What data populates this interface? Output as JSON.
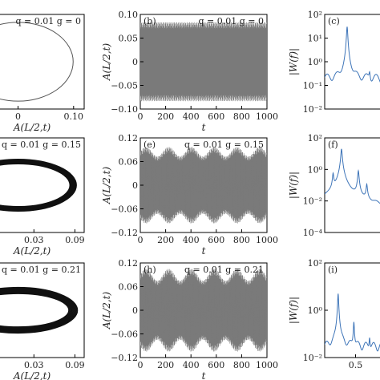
{
  "chart_data": [
    {
      "type": "line",
      "panel": "a",
      "label": "",
      "annotation": "q = 0.01  g = 0",
      "xlabel": "A(L/2,t)",
      "ylabel": "",
      "xlim": [
        -0.12,
        0.12
      ],
      "ylim": [
        -0.12,
        0.12
      ],
      "xticks": [
        "0",
        "0.10"
      ],
      "yticks": [],
      "series": [
        {
          "kind": "ellipse",
          "cx": 0.0,
          "cy": 0.0,
          "rx": 0.1,
          "ry": 0.1,
          "band": 0.0
        }
      ]
    },
    {
      "type": "line",
      "panel": "b",
      "label": "(b)",
      "annotation": "q = 0.01  g = 0",
      "xlabel": "t",
      "ylabel": "A(L/2,t)",
      "xlim": [
        0,
        1000
      ],
      "ylim": [
        -0.12,
        0.12
      ],
      "xticks": [
        "0",
        "200",
        "400",
        "600",
        "800",
        "1000"
      ],
      "yticks": [
        "0.10",
        "0.05",
        "0",
        "−0.05",
        "−0.10"
      ],
      "series": [
        {
          "kind": "oscillation",
          "amp": 0.1,
          "mod": 0.0
        }
      ]
    },
    {
      "type": "line",
      "panel": "c",
      "label": "(c)",
      "xlabel": "",
      "ylabel": "|W(f)|",
      "yscale": "log",
      "ylim": [
        0.01,
        100
      ],
      "xlim": [
        0,
        0.4
      ],
      "xticks": [],
      "yticks": [
        "10²",
        "10¹",
        "10⁰",
        "10⁻¹",
        "10⁻²"
      ],
      "series": [
        {
          "kind": "spectrum",
          "peaks": [
            [
              0.16,
              30
            ],
            [
              0.32,
              0.2
            ]
          ],
          "base": 0.2
        }
      ]
    },
    {
      "type": "line",
      "panel": "d",
      "label": "",
      "annotation": "q = 0.01  g = 0.15",
      "xlabel": "A(L/2,t)",
      "ylabel": "",
      "xlim": [
        -0.12,
        0.12
      ],
      "ylim": [
        -0.12,
        0.12
      ],
      "xticks": [
        "0.03",
        "0.09"
      ],
      "yticks": [],
      "series": [
        {
          "kind": "ellipse",
          "cx": 0.0,
          "cy": 0.0,
          "rx": 0.1,
          "ry": 0.06,
          "band": 0.012
        }
      ]
    },
    {
      "type": "line",
      "panel": "e",
      "label": "(e)",
      "annotation": "q = 0.01  g = 0.15",
      "xlabel": "t",
      "ylabel": "A(L/2,t)",
      "xlim": [
        0,
        1000
      ],
      "ylim": [
        -0.12,
        0.12
      ],
      "xticks": [
        "0",
        "200",
        "400",
        "600",
        "800",
        "1000"
      ],
      "yticks": [
        "0.12",
        "0.06",
        "0",
        "−0.06",
        "−0.12"
      ],
      "series": [
        {
          "kind": "oscillation",
          "amp": 0.085,
          "mod": 0.012
        }
      ]
    },
    {
      "type": "line",
      "panel": "f",
      "label": "(f)",
      "xlabel": "",
      "ylabel": "|W(f)|",
      "yscale": "log",
      "ylim": [
        0.0001,
        100
      ],
      "xlim": [
        0,
        0.4
      ],
      "xticks": [],
      "yticks": [
        "10²",
        "10⁰",
        "10⁻²",
        "10⁻⁴"
      ],
      "series": [
        {
          "kind": "spectrum",
          "peaks": [
            [
              0.06,
              0.5
            ],
            [
              0.12,
              20
            ],
            [
              0.24,
              0.8
            ],
            [
              0.3,
              0.1
            ]
          ],
          "base": 0.003
        }
      ]
    },
    {
      "type": "line",
      "panel": "g",
      "label": "",
      "annotation": "q = 0.01  g = 0.21",
      "xlabel": "A(L/2,t)",
      "ylabel": "",
      "xlim": [
        -0.12,
        0.12
      ],
      "ylim": [
        -0.12,
        0.12
      ],
      "xticks": [
        "0.03",
        "0.09"
      ],
      "yticks": [],
      "series": [
        {
          "kind": "ellipse",
          "cx": 0.0,
          "cy": 0.0,
          "rx": 0.1,
          "ry": 0.05,
          "band": 0.016
        }
      ]
    },
    {
      "type": "line",
      "panel": "h",
      "label": "(h)",
      "annotation": "q = 0.01  g = 0.21",
      "xlabel": "t",
      "ylabel": "A(L/2,t)",
      "xlim": [
        0,
        1000
      ],
      "ylim": [
        -0.12,
        0.12
      ],
      "xticks": [
        "0",
        "200",
        "400",
        "600",
        "800",
        "1000"
      ],
      "yticks": [
        "0.12",
        "0.06",
        "0",
        "−0.06",
        "−0.12"
      ],
      "series": [
        {
          "kind": "oscillation",
          "amp": 0.09,
          "mod": 0.015
        }
      ]
    },
    {
      "type": "line",
      "panel": "i",
      "label": "(i)",
      "xlabel": "",
      "ylabel": "|W(f)|",
      "yscale": "log",
      "ylim": [
        0.01,
        100
      ],
      "xlim": [
        0,
        0.5
      ],
      "xticks": [
        "0.5"
      ],
      "yticks": [
        "10²",
        "10⁰",
        "10⁻²"
      ],
      "series": [
        {
          "kind": "spectrum",
          "peaks": [
            [
              0.12,
              5
            ],
            [
              0.26,
              0.3
            ],
            [
              0.4,
              0.05
            ]
          ],
          "base": 0.03
        }
      ]
    }
  ],
  "colors": {
    "axis": "#000000",
    "trace": "#7a7a7a",
    "spectrum": "#3d74b8",
    "text": "#222222"
  }
}
